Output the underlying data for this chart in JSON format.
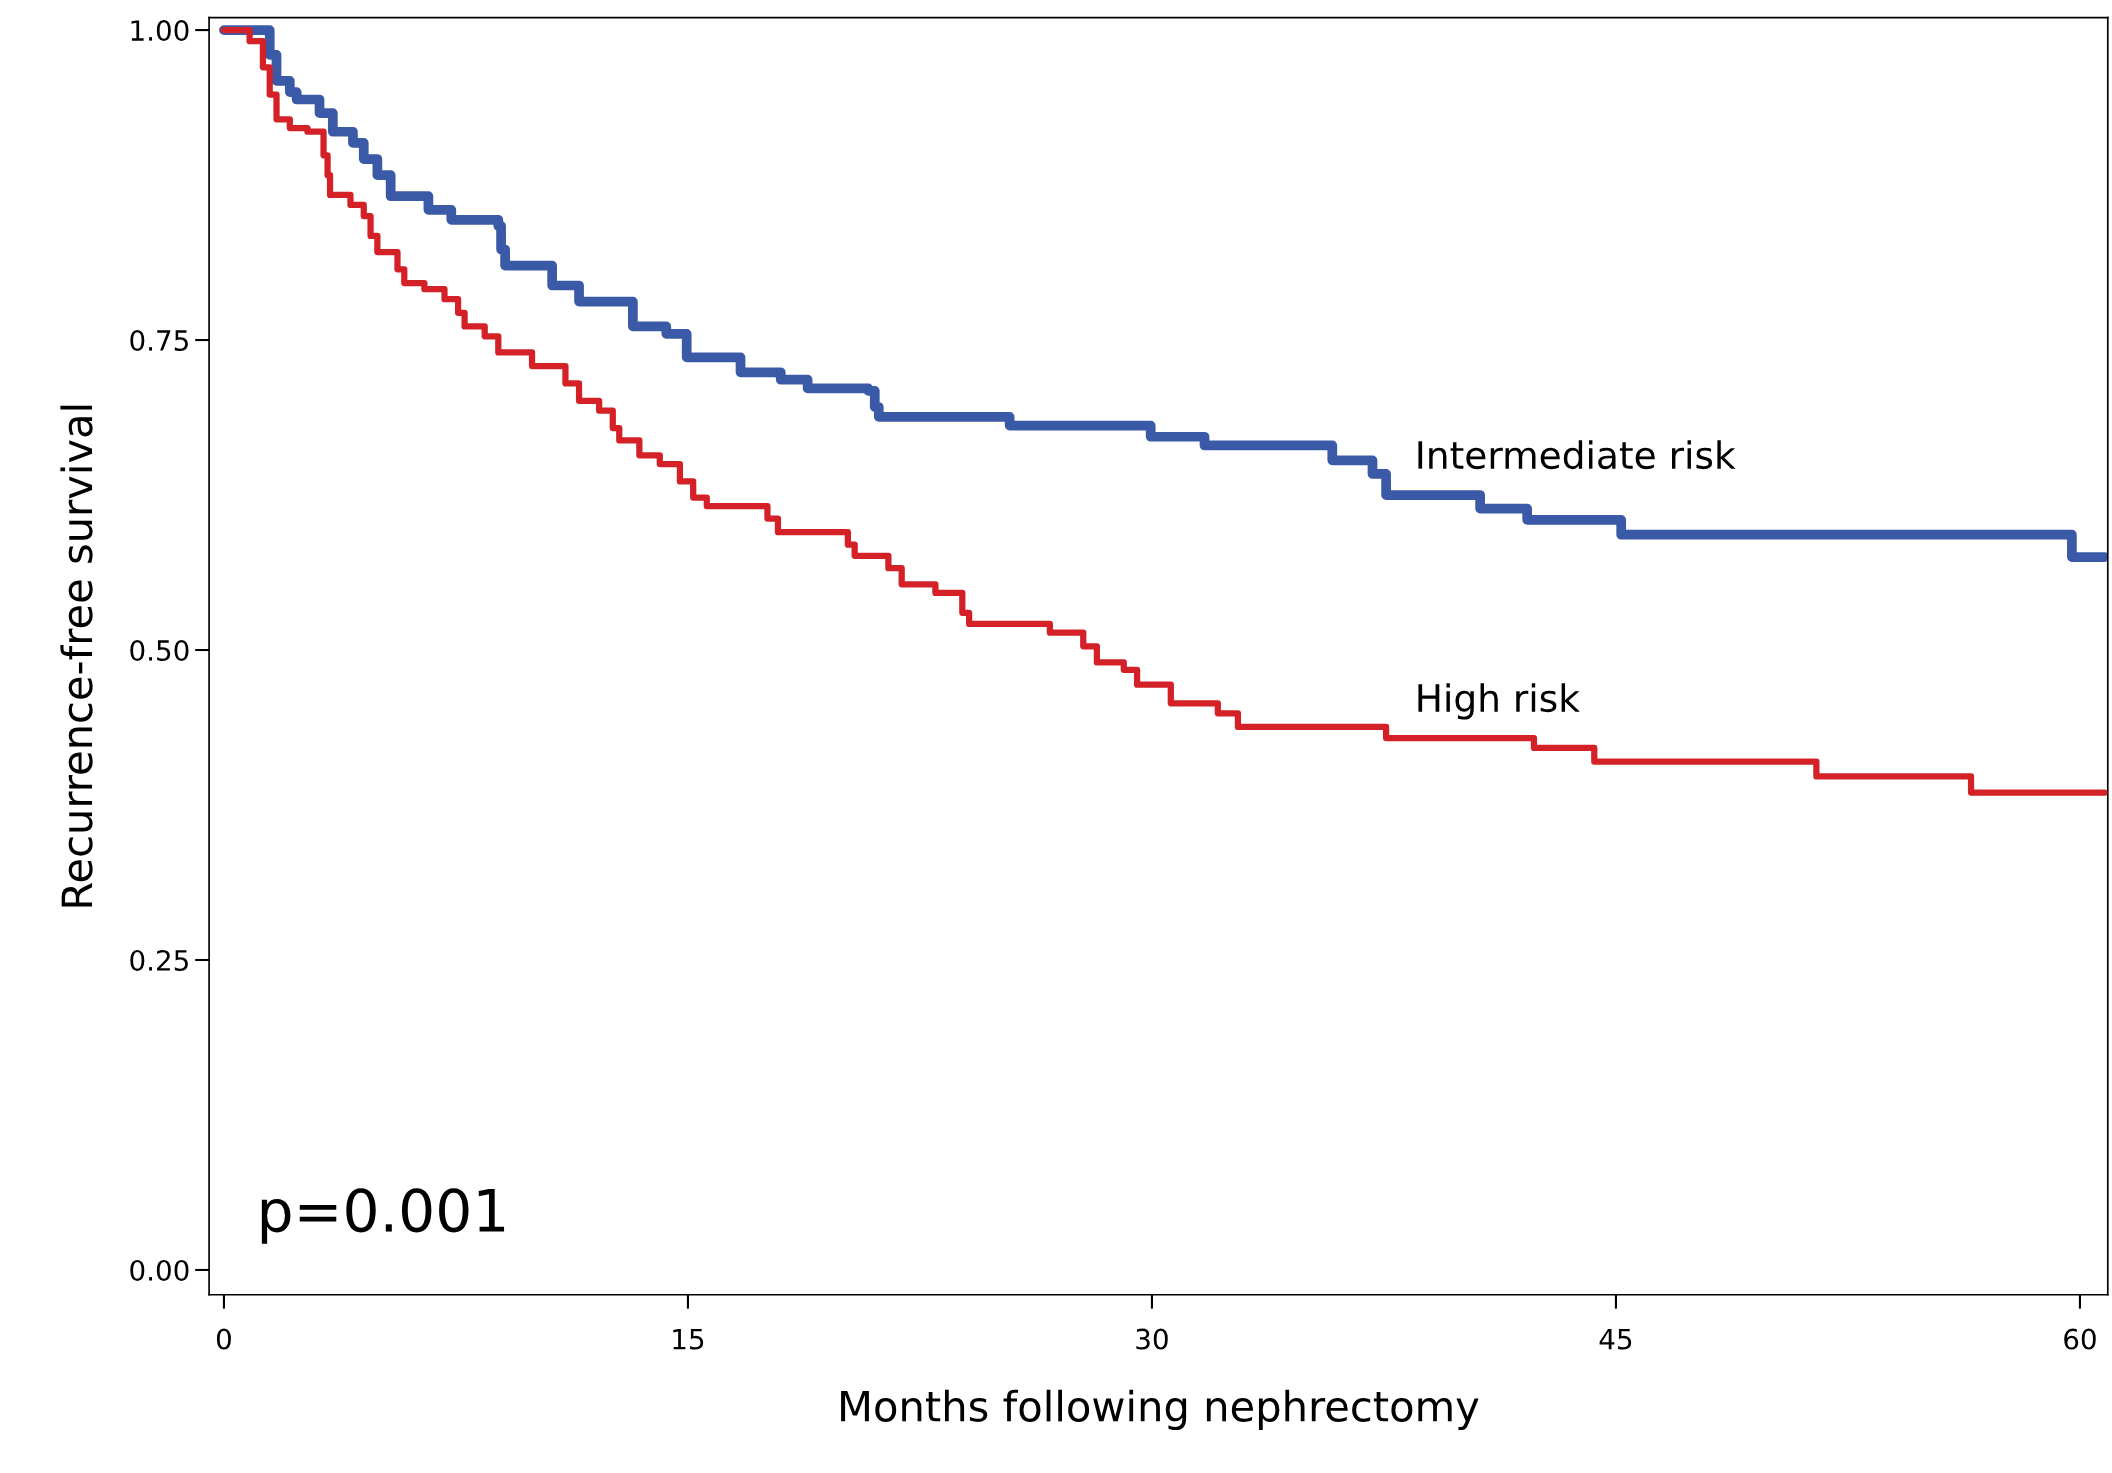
{
  "chart_data": {
    "type": "step",
    "xlabel": "Months following nephrectomy",
    "ylabel": "Recurrence-free survival",
    "xlim": [
      -0.48,
      60.9
    ],
    "ylim": [
      -0.02,
      1.01
    ],
    "xticks": [
      0,
      15,
      30,
      45,
      60
    ],
    "yticks": [
      {
        "value": 0,
        "label": "0.00"
      },
      {
        "value": 0.25,
        "label": "0.25"
      },
      {
        "value": 0.5,
        "label": "0.50"
      },
      {
        "value": 0.75,
        "label": "0.75"
      },
      {
        "value": 1,
        "label": "1.00"
      }
    ],
    "grid": false,
    "legend": false,
    "annotations": [
      "p=0.001"
    ],
    "series": [
      {
        "name": "Intermediate risk",
        "color": "#3a5aa8",
        "x": [
          0,
          1.48,
          1.7,
          2.13,
          2.35,
          3.09,
          3.52,
          4.17,
          4.52,
          4.96,
          5.39,
          6.61,
          7.35,
          8.87,
          8.96,
          9.09,
          10.61,
          11.48,
          13.22,
          14.3,
          14.96,
          16.7,
          18.0,
          18.87,
          20.83,
          21.04,
          21.17,
          25.4,
          29.96,
          31.7,
          35.83,
          37.13,
          37.57,
          40.61,
          42.13,
          45.17,
          59.74,
          60.8
        ],
        "values": [
          1.0,
          0.98,
          0.959,
          0.95,
          0.944,
          0.933,
          0.918,
          0.909,
          0.896,
          0.883,
          0.866,
          0.855,
          0.847,
          0.842,
          0.823,
          0.81,
          0.794,
          0.781,
          0.761,
          0.755,
          0.736,
          0.724,
          0.718,
          0.711,
          0.709,
          0.696,
          0.688,
          0.681,
          0.672,
          0.665,
          0.653,
          0.642,
          0.625,
          0.614,
          0.605,
          0.593,
          0.575,
          0.575
        ]
      },
      {
        "name": "High risk",
        "color": "#d42027",
        "x": [
          0,
          0.83,
          1.26,
          1.48,
          1.7,
          2.13,
          2.7,
          3.22,
          3.35,
          3.43,
          4.09,
          4.52,
          4.74,
          4.96,
          5.61,
          5.83,
          6.48,
          7.13,
          7.57,
          7.78,
          8.43,
          8.87,
          9.96,
          11.04,
          11.48,
          12.13,
          12.57,
          12.78,
          13.43,
          14.09,
          14.74,
          15.17,
          15.61,
          17.57,
          17.91,
          20.17,
          20.39,
          21.48,
          21.91,
          23.0,
          23.87,
          24.09,
          26.7,
          27.78,
          28.22,
          29.09,
          29.52,
          30.61,
          32.13,
          32.78,
          37.57,
          42.35,
          44.3,
          51.48,
          56.48,
          60.8
        ],
        "values": [
          1.0,
          0.991,
          0.97,
          0.948,
          0.928,
          0.921,
          0.918,
          0.899,
          0.883,
          0.867,
          0.859,
          0.85,
          0.834,
          0.821,
          0.807,
          0.796,
          0.791,
          0.783,
          0.772,
          0.761,
          0.753,
          0.74,
          0.729,
          0.715,
          0.701,
          0.693,
          0.679,
          0.669,
          0.657,
          0.65,
          0.636,
          0.623,
          0.616,
          0.606,
          0.595,
          0.585,
          0.576,
          0.566,
          0.553,
          0.546,
          0.53,
          0.521,
          0.514,
          0.503,
          0.49,
          0.484,
          0.472,
          0.457,
          0.449,
          0.438,
          0.429,
          0.421,
          0.41,
          0.398,
          0.385,
          0.385
        ]
      }
    ]
  }
}
